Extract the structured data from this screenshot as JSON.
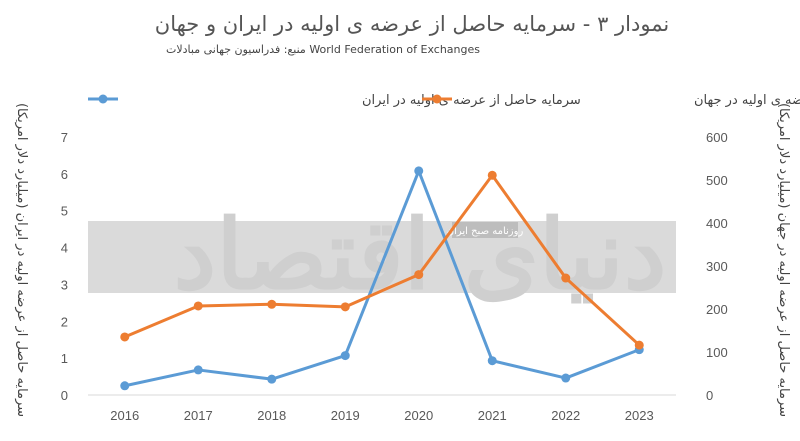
{
  "chart_data": {
    "type": "line",
    "title": "نمودار ۳ - سرمایه حاصل از عرضه ی اولیه در ایران و جهان",
    "subtitle": "منبع: فدراسیون جهانی مبادلات  World Federation of Exchanges",
    "categories": [
      "2016",
      "2017",
      "2018",
      "2019",
      "2020",
      "2021",
      "2022",
      "2023"
    ],
    "y_left": {
      "label": "سرمایه حاصل از عرضه اولیه در ایران (میلیارد دلار امریکا)",
      "ylim": [
        0,
        7
      ],
      "ticks": [
        "0",
        "1",
        "2",
        "3",
        "4",
        "5",
        "6",
        "7"
      ]
    },
    "y_right": {
      "label": "سرمایه حاصل از عرضه اولیه در جهان (میلیارد دلار امریکا)",
      "ylim": [
        0,
        600
      ],
      "ticks": [
        "0",
        "100",
        "200",
        "300",
        "400",
        "500",
        "600"
      ]
    },
    "series": [
      {
        "name": "سرمایه حاصل از عرضه ی اولیه در ایران",
        "axis": "left",
        "color": "#5b9bd5",
        "values": [
          0.25,
          0.68,
          0.43,
          1.07,
          6.08,
          0.93,
          0.46,
          1.23
        ]
      },
      {
        "name": "سرمایه حاصل از عرضه ی اولیه در جهان",
        "axis": "right",
        "color": "#ed7d31",
        "values": [
          135,
          207,
          211,
          205,
          280,
          511,
          272,
          116
        ]
      }
    ],
    "legend_position": "top",
    "grid": false
  },
  "watermark": {
    "logo_text": "دنیای اقتصاد",
    "tagline": "روزنامه صبح ایران"
  }
}
